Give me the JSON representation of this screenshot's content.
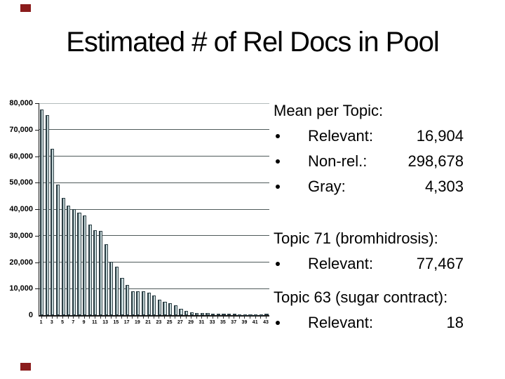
{
  "slide": {
    "title": "Estimated # of Rel Docs in Pool"
  },
  "decorations": {
    "corner_mark_color": "#8b1c1c"
  },
  "chart_data": {
    "type": "bar",
    "title": "",
    "xlabel": "",
    "ylabel": "",
    "x": [
      1,
      2,
      3,
      4,
      5,
      6,
      7,
      8,
      9,
      10,
      11,
      12,
      13,
      14,
      15,
      16,
      17,
      18,
      19,
      20,
      21,
      22,
      23,
      24,
      25,
      26,
      27,
      28,
      29,
      30,
      31,
      32,
      33,
      34,
      35,
      36,
      37,
      38,
      39,
      40,
      41,
      42,
      43
    ],
    "values": [
      77500,
      75600,
      62700,
      49200,
      44300,
      41300,
      40100,
      38700,
      37600,
      34300,
      32100,
      31800,
      26800,
      20200,
      18300,
      14100,
      11400,
      9100,
      9000,
      8900,
      8600,
      7400,
      5700,
      5100,
      4400,
      3800,
      2500,
      1500,
      1100,
      900,
      800,
      900,
      500,
      400,
      500,
      500,
      400,
      300,
      300,
      300,
      300,
      300,
      400
    ],
    "x_tick_labels": [
      "1",
      "3",
      "5",
      "7",
      "9",
      "11",
      "13",
      "15",
      "17",
      "19",
      "21",
      "23",
      "25",
      "27",
      "29",
      "31",
      "33",
      "35",
      "37",
      "39",
      "41",
      "43"
    ],
    "y_ticks": [
      0,
      10000,
      20000,
      30000,
      40000,
      50000,
      60000,
      70000,
      80000
    ],
    "y_tick_labels": [
      "0",
      "10,000",
      "20,000",
      "30,000",
      "40,000",
      "50,000",
      "60,000",
      "70,000",
      "80,000"
    ],
    "ylim": [
      0,
      80000
    ],
    "grid": true,
    "legend": "none",
    "colors": {
      "bar_fill": "#dbe9ea",
      "bar_shade": "#a2b9bd",
      "bar_border": "#2c3e44",
      "grid_interior": "#4f5a5a",
      "grid_top": "#b3bcbc",
      "axis": "#1a1a1a"
    }
  },
  "panel": {
    "blocks": [
      {
        "heading": "Mean per Topic:",
        "rows": [
          {
            "label": "Relevant:",
            "value": "16,904"
          },
          {
            "label": "Non-rel.:",
            "value": "298,678"
          },
          {
            "label": "Gray:",
            "value": "4,303"
          }
        ]
      },
      {
        "heading": "Topic 71 (bromhidrosis):",
        "rows": [
          {
            "label": "Relevant:",
            "value": "77,467"
          }
        ]
      },
      {
        "heading": "Topic 63 (sugar contract):",
        "rows": [
          {
            "label": "Relevant:",
            "value": "18"
          }
        ]
      }
    ]
  }
}
